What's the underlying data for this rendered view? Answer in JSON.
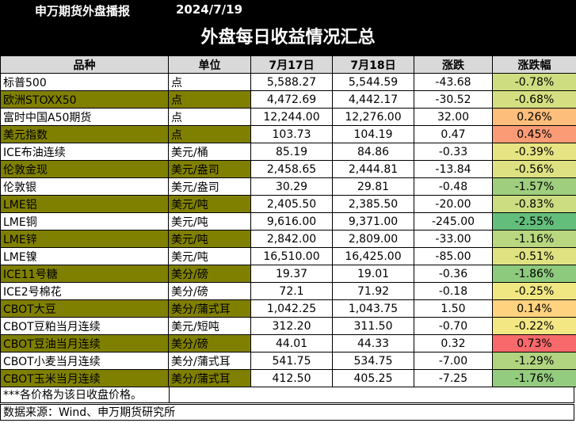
{
  "header": {
    "brand": "申万期货外盘播报",
    "date": "2024/7/19"
  },
  "title": "外盘每日收益情况汇总",
  "columns": [
    "品种",
    "单位",
    "7月17日",
    "7月18日",
    "涨跌",
    "涨跌幅"
  ],
  "rows": [
    {
      "name": "标普500",
      "unit": "点",
      "d17": "5,588.27",
      "d18": "5,544.59",
      "chg": "-43.68",
      "pct": "-0.78%",
      "pct_value": -0.78,
      "olive": false
    },
    {
      "name": "欧洲STOXX50",
      "unit": "点",
      "d17": "4,472.69",
      "d18": "4,442.17",
      "chg": "-30.52",
      "pct": "-0.68%",
      "pct_value": -0.68,
      "olive": true
    },
    {
      "name": "富时中国A50期货",
      "unit": "点",
      "d17": "12,244.00",
      "d18": "12,276.00",
      "chg": "32.00",
      "pct": "0.26%",
      "pct_value": 0.26,
      "olive": false
    },
    {
      "name": "美元指数",
      "unit": "点",
      "d17": "103.73",
      "d18": "104.19",
      "chg": "0.47",
      "pct": "0.45%",
      "pct_value": 0.45,
      "olive": true
    },
    {
      "name": "ICE布油连续",
      "unit": "美元/桶",
      "d17": "85.19",
      "d18": "84.86",
      "chg": "-0.33",
      "pct": "-0.39%",
      "pct_value": -0.39,
      "olive": false
    },
    {
      "name": "伦敦金现",
      "unit": "美元/盎司",
      "d17": "2,458.65",
      "d18": "2,444.81",
      "chg": "-13.84",
      "pct": "-0.56%",
      "pct_value": -0.56,
      "olive": true
    },
    {
      "name": "伦敦银",
      "unit": "美元/盎司",
      "d17": "30.29",
      "d18": "29.81",
      "chg": "-0.48",
      "pct": "-1.57%",
      "pct_value": -1.57,
      "olive": false
    },
    {
      "name": "LME铝",
      "unit": "美元/吨",
      "d17": "2,405.50",
      "d18": "2,385.50",
      "chg": "-20.00",
      "pct": "-0.83%",
      "pct_value": -0.83,
      "olive": true
    },
    {
      "name": "LME铜",
      "unit": "美元/吨",
      "d17": "9,616.00",
      "d18": "9,371.00",
      "chg": "-245.00",
      "pct": "-2.55%",
      "pct_value": -2.55,
      "olive": false
    },
    {
      "name": "LME锌",
      "unit": "美元/吨",
      "d17": "2,842.00",
      "d18": "2,809.00",
      "chg": "-33.00",
      "pct": "-1.16%",
      "pct_value": -1.16,
      "olive": true
    },
    {
      "name": "LME镍",
      "unit": "美元/吨",
      "d17": "16,510.00",
      "d18": "16,425.00",
      "chg": "-85.00",
      "pct": "-0.51%",
      "pct_value": -0.51,
      "olive": false
    },
    {
      "name": "ICE11号糖",
      "unit": "美分/磅",
      "d17": "19.37",
      "d18": "19.01",
      "chg": "-0.36",
      "pct": "-1.86%",
      "pct_value": -1.86,
      "olive": true
    },
    {
      "name": "ICE2号棉花",
      "unit": "美分/磅",
      "d17": "72.1",
      "d18": "71.92",
      "chg": "-0.18",
      "pct": "-0.25%",
      "pct_value": -0.25,
      "olive": false
    },
    {
      "name": "CBOT大豆",
      "unit": "美分/蒲式耳",
      "d17": "1,042.25",
      "d18": "1,043.75",
      "chg": "1.50",
      "pct": "0.14%",
      "pct_value": 0.14,
      "olive": true
    },
    {
      "name": "CBOT豆粕当月连续",
      "unit": "美元/短吨",
      "d17": "312.20",
      "d18": "311.50",
      "chg": "-0.70",
      "pct": "-0.22%",
      "pct_value": -0.22,
      "olive": false
    },
    {
      "name": "CBOT豆油当月连续",
      "unit": "美分/磅",
      "d17": "44.01",
      "d18": "44.33",
      "chg": "0.32",
      "pct": "0.73%",
      "pct_value": 0.73,
      "olive": true
    },
    {
      "name": "CBOT小麦当月连续",
      "unit": "美分/蒲式耳",
      "d17": "541.75",
      "d18": "534.75",
      "chg": "-7.00",
      "pct": "-1.29%",
      "pct_value": -1.29,
      "olive": false
    },
    {
      "name": "CBOT玉米当月连续",
      "unit": "美分/蒲式耳",
      "d17": "412.50",
      "d18": "405.25",
      "chg": "-7.25",
      "pct": "-1.76%",
      "pct_value": -1.76,
      "olive": true
    }
  ],
  "colors": {
    "positive_max": "#f8696b",
    "midpoint": "#ffeb84",
    "negative_max": "#63be7b",
    "olive_fill": "#808000",
    "header_fill": "#d9d9d9"
  },
  "footer": {
    "note": "***各价格为该日收盘价格。",
    "source": "数据来源：Wind、申万期货研究所"
  }
}
